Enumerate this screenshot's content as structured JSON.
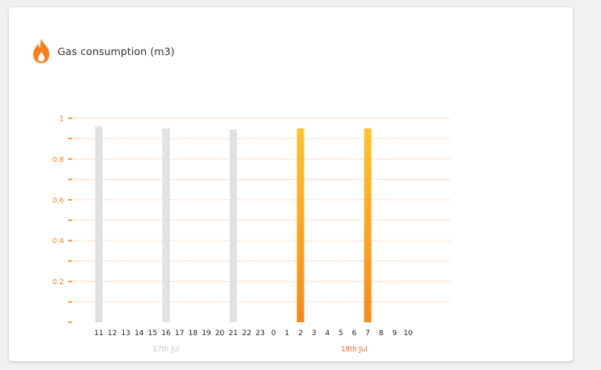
{
  "widget": {
    "title": "Gas consumption (m3)",
    "icon": "flame-icon"
  },
  "colors": {
    "accent": "#f58220",
    "grid": "#fbe3d2",
    "past_bar": "#e1e1e1",
    "bar_top": "#fcc533",
    "bar_bottom": "#f7891c",
    "tick_text": "#222222",
    "day_past": "#c8c8c8",
    "day_current": "#f26522"
  },
  "chart_data": {
    "type": "bar",
    "title": "Gas consumption (m3)",
    "xlabel": "",
    "ylabel": "",
    "ylim": [
      0,
      1
    ],
    "yticks": [
      0.2,
      0.4,
      0.6,
      0.8,
      1
    ],
    "ytick_labels": [
      "0.2",
      "0.4",
      "0.6",
      "0.8",
      "1"
    ],
    "grid": true,
    "categories": [
      "11",
      "12",
      "13",
      "14",
      "15",
      "16",
      "17",
      "18",
      "19",
      "20",
      "21",
      "22",
      "23",
      "0",
      "1",
      "2",
      "3",
      "4",
      "5",
      "6",
      "7",
      "8",
      "9",
      "10"
    ],
    "values": [
      0.96,
      0,
      0,
      0,
      0,
      0.95,
      0,
      0,
      0,
      0,
      0.945,
      0,
      0,
      0,
      0,
      0.95,
      0,
      0,
      0,
      0,
      0.95,
      0,
      0,
      0
    ],
    "bar_style": [
      "past",
      "",
      "",
      "",
      "",
      "past",
      "",
      "",
      "",
      "",
      "past",
      "",
      "",
      "",
      "",
      "current",
      "",
      "",
      "",
      "",
      "current",
      "",
      "",
      ""
    ],
    "day_labels": [
      {
        "label": "17th Jul",
        "style": "past",
        "category": "16"
      },
      {
        "label": "18th Jul",
        "style": "current",
        "category": "6"
      }
    ]
  }
}
